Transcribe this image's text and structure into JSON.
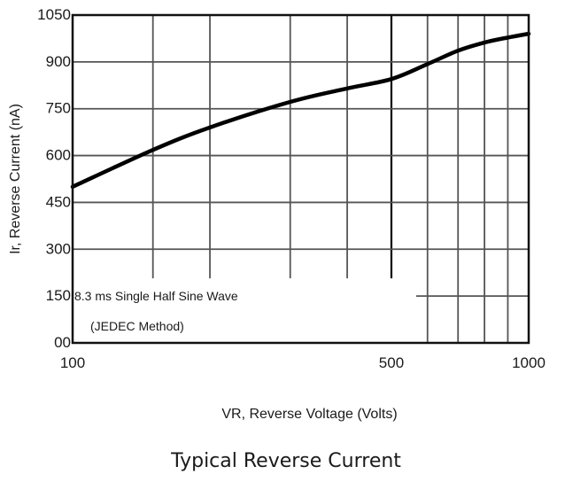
{
  "chart_data": {
    "type": "line",
    "title": "Typical Reverse Current",
    "xlabel": "VR, Reverse Voltage (Volts)",
    "ylabel": "Ir, Reverse Current (nA)",
    "x_scale": "log",
    "xlim": [
      100,
      1000
    ],
    "ylim": [
      0,
      1050
    ],
    "x_tick_labels": [
      "100",
      "500",
      "1000"
    ],
    "x_tick_values": [
      100,
      500,
      1000
    ],
    "y_tick_labels": [
      "00",
      "150",
      "300",
      "450",
      "600",
      "750",
      "900",
      "1050"
    ],
    "y_tick_values": [
      0,
      150,
      300,
      450,
      600,
      750,
      900,
      1050
    ],
    "grid": true,
    "annotations": [
      "8.3 ms Single Half Sine Wave",
      "(JEDEC Method)"
    ],
    "series": [
      {
        "x": [
          100,
          150,
          200,
          300,
          400,
          500,
          600,
          700,
          800,
          900,
          1000
        ],
        "y": [
          500,
          618,
          690,
          772,
          815,
          845,
          893,
          936,
          962,
          978,
          990
        ]
      }
    ]
  },
  "colors": {
    "line": "#000000",
    "grid": "#555555",
    "frame": "#111111"
  }
}
